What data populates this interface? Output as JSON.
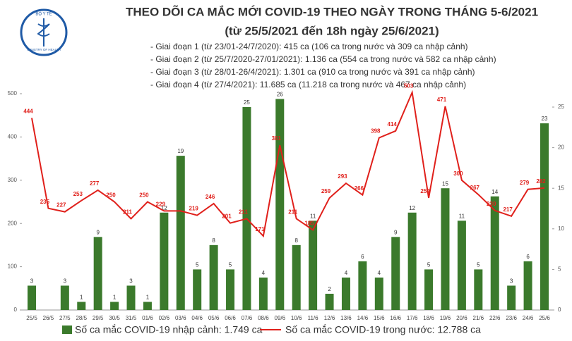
{
  "logo": {
    "top": "BỘ Y TẾ",
    "bottom": "MINISTRY OF HEALTH"
  },
  "chart_data": {
    "type": "combo",
    "title": "THEO DÕI CA MẮC MỚI COVID-19 THEO NGÀY TRONG THÁNG 5-6/2021",
    "subtitle": "(từ 25/5/2021 đến 18h ngày 25/6/2021)",
    "annotations": [
      "- Giai đoạn 1 (từ 23/01-24/7/2020): 415 ca (106 ca trong nước và 309 ca nhập cảnh)",
      "- Giai đoạn 2 (từ 25/7/2020-27/01/2021): 1.136 ca (554 ca trong nước và 582 ca nhập cảnh)",
      "- Giai đoạn 3 (từ 28/01-26/4/2021): 1.301 ca (910 ca trong nước và 391 ca nhập cảnh)",
      "- Giai đoạn 4 (từ 27/4/2021): 11.685 ca (11.218 ca trong nước và 467 ca nhập cảnh)"
    ],
    "categories": [
      "25/5",
      "26/5",
      "27/5",
      "28/5",
      "29/5",
      "30/5",
      "31/5",
      "01/6",
      "02/6",
      "03/6",
      "04/6",
      "05/6",
      "06/6",
      "07/6",
      "08/6",
      "09/6",
      "10/6",
      "11/6",
      "12/6",
      "13/6",
      "14/6",
      "15/6",
      "16/6",
      "17/6",
      "18/6",
      "19/6",
      "20/6",
      "21/6",
      "22/6",
      "23/6",
      "24/6",
      "25/6"
    ],
    "series": [
      {
        "name": "Số ca mắc COVID-19 nhập cảnh: 1.749 ca",
        "type": "bar",
        "axis": "y2",
        "color": "#3b7a2c",
        "values": [
          3,
          null,
          3,
          1,
          9,
          1,
          3,
          1,
          12,
          19,
          5,
          8,
          5,
          25,
          4,
          26,
          8,
          11,
          2,
          4,
          6,
          4,
          9,
          12,
          5,
          15,
          11,
          5,
          14,
          3,
          6,
          23
        ]
      },
      {
        "name": "Số ca mắc COVID-19 trong nước: 12.788 ca",
        "type": "line",
        "axis": "y",
        "color": "#e0201b",
        "values": [
          444,
          235,
          227,
          253,
          277,
          250,
          211,
          250,
          229,
          229,
          219,
          246,
          201,
          211,
          171,
          381,
          211,
          185,
          259,
          293,
          266,
          398,
          414,
          503,
          259,
          471,
          300,
          267,
          230,
          217,
          279,
          282
        ],
        "value_labels": [
          "444",
          "235",
          "227",
          "253",
          "277",
          "250",
          "211",
          "250",
          "229",
          null,
          "219",
          "246",
          "201",
          "211",
          "171",
          "381",
          "211",
          "185",
          "259",
          "293",
          "266",
          "398",
          "414",
          "503",
          "259",
          "471",
          "300",
          "267",
          "230",
          "217",
          "279",
          "282"
        ]
      }
    ],
    "ylim": [
      0,
      500
    ],
    "yticks": [
      0,
      100,
      200,
      300,
      400,
      500
    ],
    "y2lim": [
      0,
      26.65
    ],
    "y2ticks": [
      0,
      5,
      10,
      15,
      20,
      25
    ]
  }
}
